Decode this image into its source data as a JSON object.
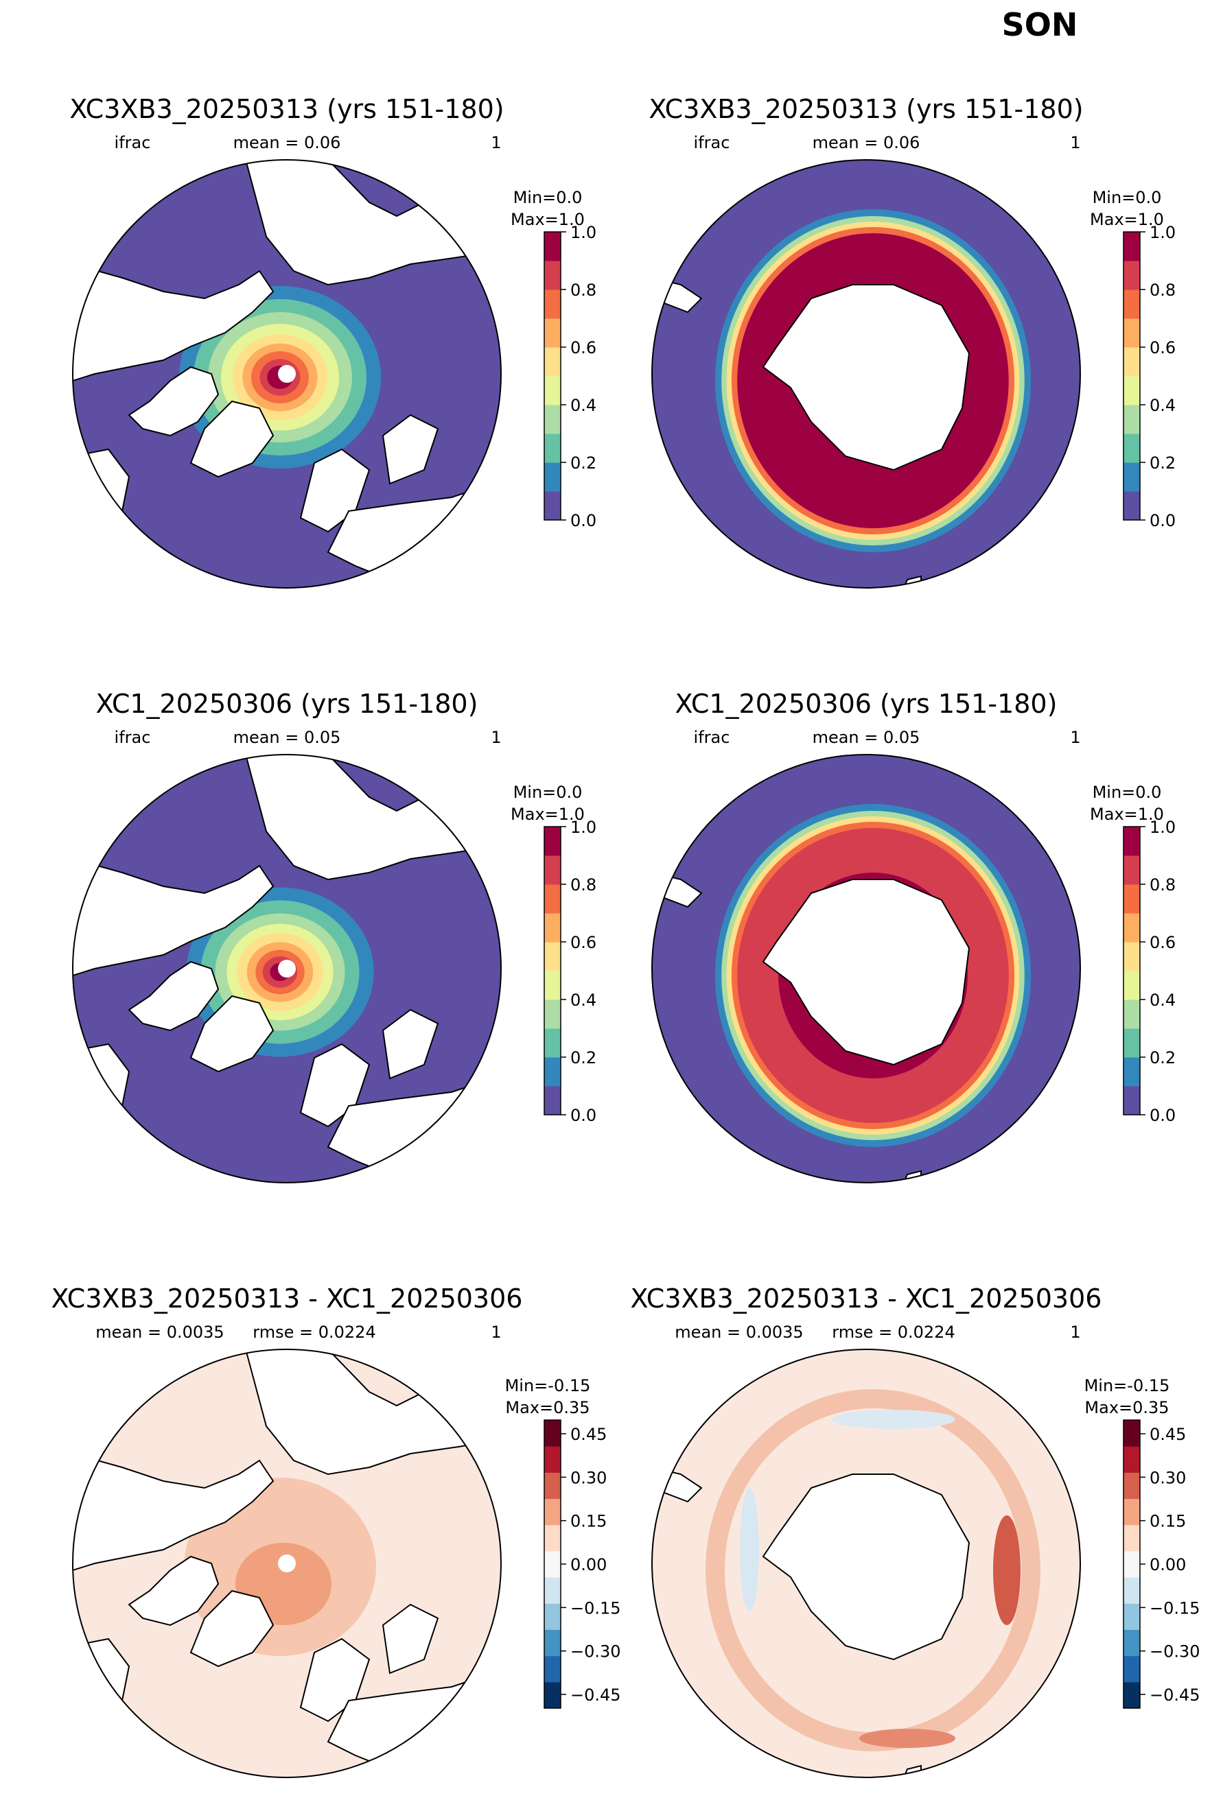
{
  "season": "SON",
  "colormaps": {
    "ifrac": [
      "#5e4fa2",
      "#3288bd",
      "#66c2a5",
      "#abdda4",
      "#e6f598",
      "#fee08b",
      "#fdae61",
      "#f46d43",
      "#d53e4f",
      "#9e0142"
    ],
    "diff": [
      "#053061",
      "#2166ac",
      "#4393c3",
      "#92c5de",
      "#d1e5f0",
      "#f7f7f7",
      "#fddbc7",
      "#f4a582",
      "#d6604d",
      "#b2182b",
      "#67001f"
    ]
  },
  "map_colors": {
    "land": "#ffffff",
    "open_ocean_ifrac": "#5e4fa2",
    "open_ocean_diff": "#fae8df",
    "coastline": "#000000",
    "pole_marker": "#ffffff"
  },
  "rows": [
    {
      "title": "XC3XB3_20250313 (yrs 151-180)",
      "sub_left": "ifrac",
      "sub_mid": "mean = 0.06",
      "sub_right": "1",
      "cb_min": "Min=0.0",
      "cb_max": "Max=1.0",
      "cb_ticks": [
        "0.0",
        "0.2",
        "0.4",
        "0.6",
        "0.8",
        "1.0"
      ]
    },
    {
      "title": "XC1_20250306 (yrs 151-180)",
      "sub_left": "ifrac",
      "sub_mid": "mean = 0.05",
      "sub_right": "1",
      "cb_min": "Min=0.0",
      "cb_max": "Max=1.0",
      "cb_ticks": [
        "0.0",
        "0.2",
        "0.4",
        "0.6",
        "0.8",
        "1.0"
      ]
    },
    {
      "title": "XC3XB3_20250313 - XC1_20250306",
      "sub_left": "mean = 0.0035",
      "sub_mid": "rmse = 0.0224",
      "sub_right": "1",
      "cb_min": "Min=-0.15",
      "cb_max": "Max=0.35",
      "cb_ticks": [
        "−0.45",
        "−0.30",
        "−0.15",
        "0.00",
        "0.15",
        "0.30",
        "0.45"
      ]
    }
  ]
}
